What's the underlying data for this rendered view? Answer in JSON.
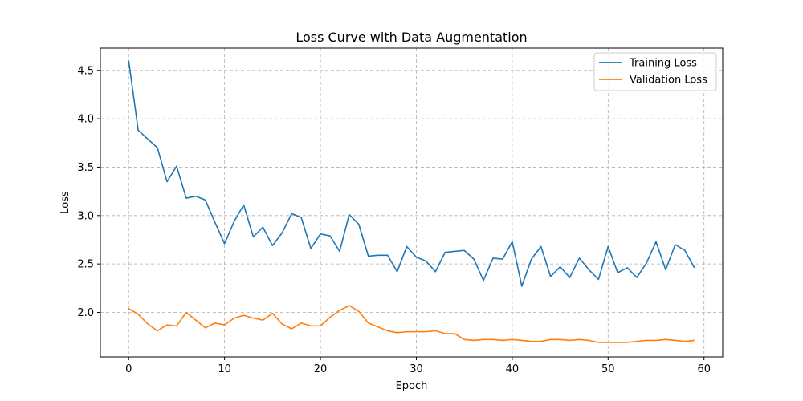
{
  "chart_data": {
    "type": "line",
    "title": "Loss Curve with Data Augmentation",
    "xlabel": "Epoch",
    "ylabel": "Loss",
    "xlim": [
      -2.95,
      61.95
    ],
    "ylim": [
      1.54,
      4.73
    ],
    "xticks": [
      0,
      10,
      20,
      30,
      40,
      50,
      60
    ],
    "yticks": [
      2.0,
      2.5,
      3.0,
      3.5,
      4.0,
      4.5
    ],
    "xtick_labels": [
      "0",
      "10",
      "20",
      "30",
      "40",
      "50",
      "60"
    ],
    "ytick_labels": [
      "2.0",
      "2.5",
      "3.0",
      "3.5",
      "4.0",
      "4.5"
    ],
    "grid": true,
    "legend_position": "top-right",
    "x": [
      0,
      1,
      2,
      3,
      4,
      5,
      6,
      7,
      8,
      9,
      10,
      11,
      12,
      13,
      14,
      15,
      16,
      17,
      18,
      19,
      20,
      21,
      22,
      23,
      24,
      25,
      26,
      27,
      28,
      29,
      30,
      31,
      32,
      33,
      34,
      35,
      36,
      37,
      38,
      39,
      40,
      41,
      42,
      43,
      44,
      45,
      46,
      47,
      48,
      49,
      50,
      51,
      52,
      53,
      54,
      55,
      56,
      57,
      58,
      59
    ],
    "series": [
      {
        "name": "Training Loss",
        "color": "#1f77b4",
        "values": [
          4.6,
          3.88,
          3.79,
          3.7,
          3.35,
          3.51,
          3.18,
          3.2,
          3.16,
          2.93,
          2.71,
          2.94,
          3.11,
          2.78,
          2.88,
          2.69,
          2.82,
          3.02,
          2.98,
          2.66,
          2.81,
          2.79,
          2.63,
          3.01,
          2.91,
          2.58,
          2.59,
          2.59,
          2.42,
          2.68,
          2.57,
          2.53,
          2.42,
          2.62,
          2.63,
          2.64,
          2.55,
          2.33,
          2.56,
          2.55,
          2.73,
          2.27,
          2.55,
          2.68,
          2.37,
          2.47,
          2.36,
          2.56,
          2.44,
          2.34,
          2.68,
          2.41,
          2.46,
          2.36,
          2.51,
          2.73,
          2.44,
          2.7,
          2.64,
          2.46
        ]
      },
      {
        "name": "Validation Loss",
        "color": "#ff7f0e",
        "values": [
          2.04,
          1.98,
          1.88,
          1.81,
          1.87,
          1.86,
          2.0,
          1.92,
          1.84,
          1.89,
          1.87,
          1.94,
          1.97,
          1.94,
          1.92,
          1.99,
          1.88,
          1.83,
          1.89,
          1.86,
          1.86,
          1.95,
          2.02,
          2.07,
          2.01,
          1.89,
          1.85,
          1.81,
          1.79,
          1.8,
          1.8,
          1.8,
          1.81,
          1.78,
          1.78,
          1.72,
          1.71,
          1.72,
          1.72,
          1.71,
          1.72,
          1.71,
          1.7,
          1.7,
          1.72,
          1.72,
          1.71,
          1.72,
          1.71,
          1.69,
          1.69,
          1.69,
          1.69,
          1.7,
          1.71,
          1.71,
          1.72,
          1.71,
          1.7,
          1.71
        ]
      }
    ]
  }
}
